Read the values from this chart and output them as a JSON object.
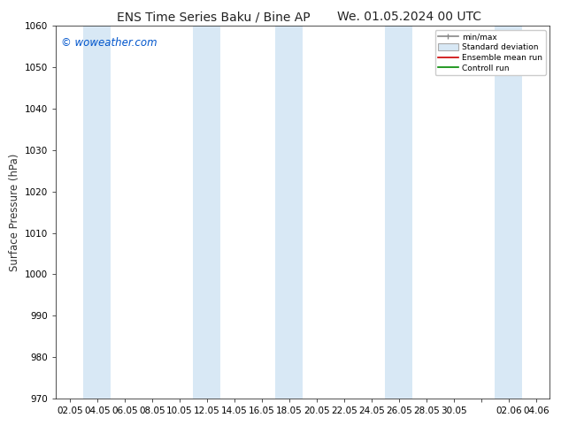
{
  "title_left": "ENS Time Series Baku / Bine AP",
  "title_right": "We. 01.05.2024 00 UTC",
  "ylabel": "Surface Pressure (hPa)",
  "ylim": [
    970,
    1060
  ],
  "yticks": [
    970,
    980,
    990,
    1000,
    1010,
    1020,
    1030,
    1040,
    1050,
    1060
  ],
  "xtick_labels": [
    "02.05",
    "04.05",
    "06.05",
    "08.05",
    "10.05",
    "12.05",
    "14.05",
    "16.05",
    "18.05",
    "20.05",
    "22.05",
    "24.05",
    "26.05",
    "28.05",
    "30.05",
    "",
    "02.06",
    "04.06"
  ],
  "watermark": "© woweather.com",
  "watermark_color": "#0055cc",
  "bg_color": "#ffffff",
  "band_color": "#d8e8f5",
  "legend_labels": [
    "min/max",
    "Standard deviation",
    "Ensemble mean run",
    "Controll run"
  ],
  "title_fontsize": 10,
  "tick_fontsize": 7.5,
  "ylabel_fontsize": 8.5
}
